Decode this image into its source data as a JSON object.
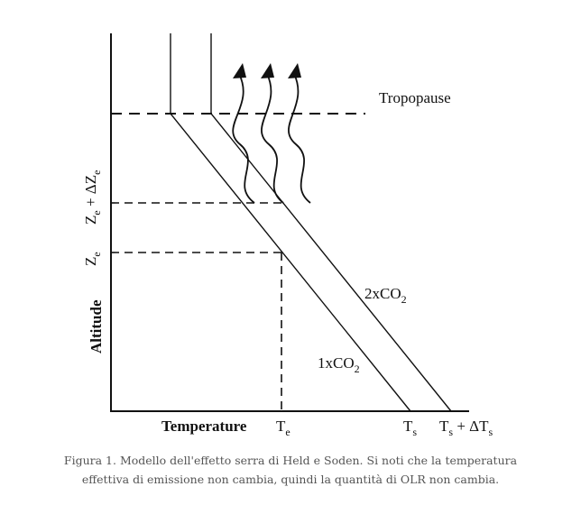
{
  "diagram": {
    "axis_x_label": "Temperature",
    "axis_y_label": "Altitude",
    "tropopause_label": "Tropopause",
    "ze_main": "Z",
    "ze_sub": "e",
    "ze_delta_main": "Z",
    "ze_delta_sub": "e",
    "ze_delta_mid": " + ΔZ",
    "ze_delta_sub2": "e",
    "te_main": "T",
    "te_sub": "e",
    "ts_main": "T",
    "ts_sub": "s",
    "tsd_main": "T",
    "tsd_sub": "s",
    "tsd_mid": " + ΔT",
    "tsd_sub2": "s",
    "co2_1_main": "1xCO",
    "co2_1_sub": "2",
    "co2_2_main": "2xCO",
    "co2_2_sub": "2"
  },
  "caption": {
    "line1": "Figura 1. Modello dell'effetto serra di Held e Soden. Si noti che la temperatura",
    "line2": "effettiva di emissione non cambia, quindi la quantità di OLR non cambia."
  },
  "colors": {
    "ink": "#111111",
    "caption": "#555555"
  }
}
